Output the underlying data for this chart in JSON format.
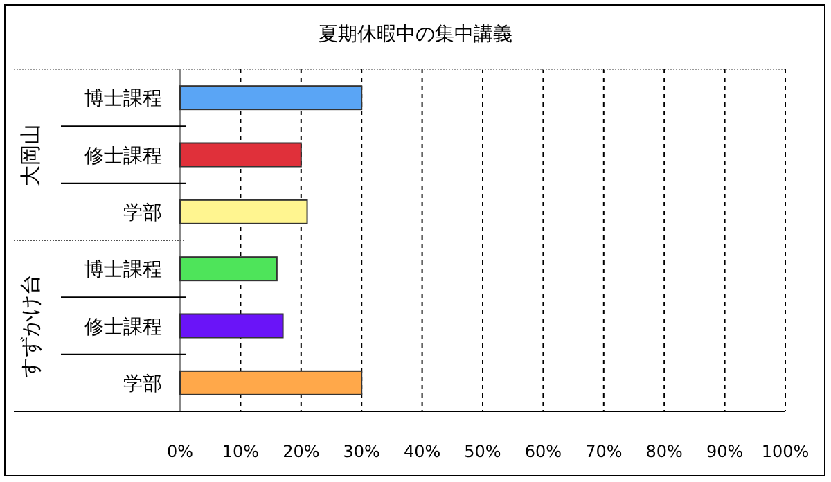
{
  "chart_data": {
    "type": "bar",
    "orientation": "horizontal",
    "title": "夏期休暇中の集中講義",
    "categories": [
      "博士課程",
      "修士課程",
      "学部",
      "博士課程",
      "修士課程",
      "学部"
    ],
    "values": [
      30,
      20,
      21,
      16,
      17,
      30
    ],
    "colors": [
      "#5aa5f5",
      "#e0303a",
      "#fff590",
      "#4ee45a",
      "#6a14f8",
      "#ffa84a"
    ],
    "annotations": [
      "大岡山",
      "すずかけ台"
    ],
    "xlim": [
      0,
      100
    ],
    "xticks": [
      {
        "value": 0,
        "label": "0%"
      },
      {
        "value": 10,
        "label": "10%"
      },
      {
        "value": 20,
        "label": "20%"
      },
      {
        "value": 30,
        "label": "30%"
      },
      {
        "value": 40,
        "label": "40%"
      },
      {
        "value": 50,
        "label": "50%"
      },
      {
        "value": 60,
        "label": "60%"
      },
      {
        "value": 70,
        "label": "70%"
      },
      {
        "value": 80,
        "label": "80%"
      },
      {
        "value": 90,
        "label": "90%"
      },
      {
        "value": 100,
        "label": "100%"
      }
    ],
    "grid": "x"
  }
}
